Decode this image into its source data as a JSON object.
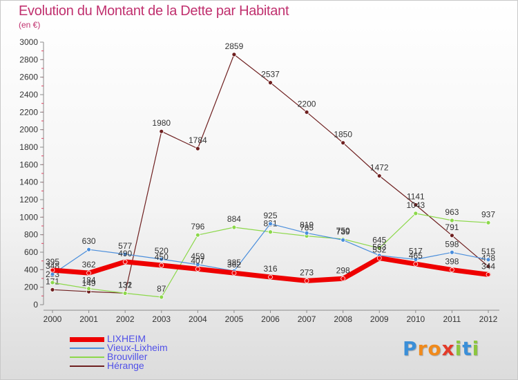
{
  "title": "Evolution du Montant de la Dette par Habitant",
  "subtitle": "(en €)",
  "logo": {
    "letters": [
      "P",
      "r",
      "o",
      "x",
      "i",
      "t",
      "i"
    ],
    "colors": [
      "#3b8fd8",
      "#f08a1c",
      "#f08a1c",
      "#e33b2a",
      "#8cc63f",
      "#3b8fd8",
      "#8cc63f"
    ]
  },
  "chart_data": {
    "type": "line",
    "title": "Evolution du Montant de la Dette par Habitant",
    "subtitle": "(en €)",
    "xlabel": "",
    "ylabel": "",
    "x": [
      "2000",
      "2001",
      "2002",
      "2003",
      "2004",
      "2005",
      "2006",
      "2007",
      "2008",
      "2009",
      "2010",
      "2011",
      "2012"
    ],
    "ylim": [
      0,
      3000
    ],
    "yticks": [
      0,
      200,
      400,
      600,
      800,
      1000,
      1200,
      1400,
      1600,
      1800,
      2000,
      2200,
      2400,
      2600,
      2800,
      3000
    ],
    "grid": false,
    "legend_position": "bottom-left",
    "series": [
      {
        "name": "Hérange",
        "color": "#6e1f1f",
        "width": 1.2,
        "values": [
          171,
          149,
          132,
          1980,
          1784,
          2859,
          2537,
          2200,
          1850,
          1472,
          1141,
          791,
          438
        ],
        "labels": [
          "171",
          "149",
          "132",
          "1980",
          "1784",
          "2859",
          "2537",
          "2200",
          "1850",
          "1472",
          "1141",
          "791",
          "438"
        ]
      },
      {
        "name": "Brouviller",
        "color": "#8cd84a",
        "width": 1.2,
        "values": [
          253,
          184,
          131,
          87,
          796,
          884,
          831,
          785,
          750,
          645,
          1043,
          963,
          937
        ],
        "labels": [
          "253",
          "184",
          "131",
          "87",
          "796",
          "884",
          "831",
          "785",
          "750",
          "645",
          "1043",
          "963",
          "937"
        ]
      },
      {
        "name": "Vieux-Lixheim",
        "color": "#4a8edc",
        "width": 1.2,
        "values": [
          348,
          630,
          577,
          520,
          459,
          385,
          925,
          819,
          739,
          563,
          517,
          598,
          515
        ],
        "labels": [
          "348",
          "630",
          "577",
          "520",
          "459",
          "385",
          "925",
          "819",
          "739",
          "563",
          "517",
          "598",
          "515"
        ]
      },
      {
        "name": "LIXHEIM",
        "color": "#ee0000",
        "width": 7,
        "values": [
          395,
          362,
          490,
          450,
          407,
          362,
          316,
          273,
          298,
          532,
          465,
          398,
          344
        ],
        "labels": [
          "395",
          "362",
          "490",
          "450",
          "407",
          "362",
          "316",
          "273",
          "298",
          "532",
          "465",
          "398",
          "344"
        ]
      }
    ]
  },
  "legend": [
    {
      "name": "LIXHEIM",
      "color": "#ee0000",
      "width": 7
    },
    {
      "name": "Vieux-Lixheim",
      "color": "#4a8edc",
      "width": 1.5
    },
    {
      "name": "Brouviller",
      "color": "#8cd84a",
      "width": 1.5
    },
    {
      "name": "Hérange",
      "color": "#6e1f1f",
      "width": 1.5
    }
  ]
}
